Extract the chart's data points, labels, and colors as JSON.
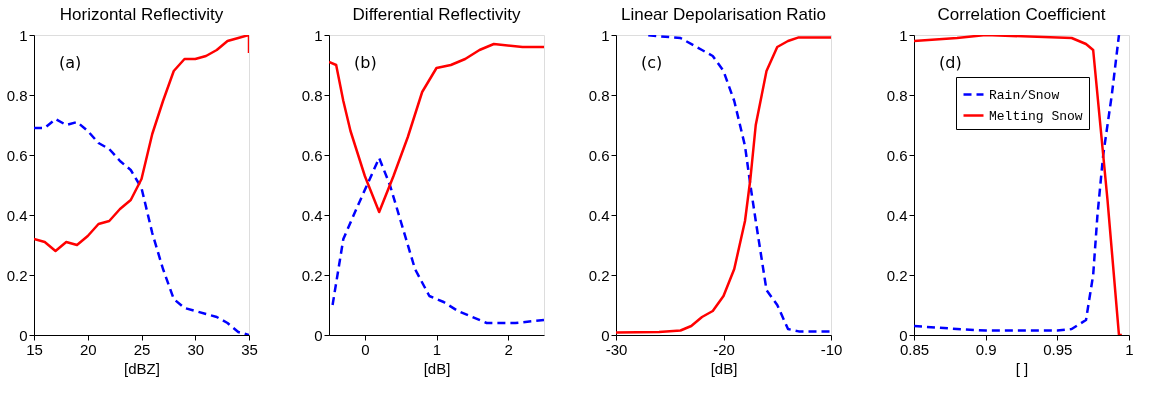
{
  "chart_data": [
    {
      "type": "line",
      "title": "Horizontal Reflectivity",
      "xlabel": "[dBZ]",
      "annotations": [
        "(a)"
      ],
      "xlim": [
        15,
        35
      ],
      "xticks": [
        15,
        20,
        25,
        30,
        35
      ],
      "ylim": [
        0,
        1
      ],
      "yticks": [
        0,
        0.2,
        0.4,
        0.6,
        0.8,
        1
      ],
      "grid": false,
      "legend": false,
      "series": [
        {
          "color": "#0000ff",
          "line_style": "dashed",
          "x": [
            15,
            16,
            17,
            18,
            19,
            20,
            21,
            22,
            23,
            24,
            25,
            26,
            27,
            28,
            29,
            30,
            31,
            32,
            33,
            34,
            35
          ],
          "values": [
            0.69,
            0.69,
            0.72,
            0.7,
            0.71,
            0.68,
            0.64,
            0.62,
            0.58,
            0.55,
            0.49,
            0.34,
            0.22,
            0.12,
            0.09,
            0.08,
            0.07,
            0.06,
            0.04,
            0.01,
            0.0
          ]
        },
        {
          "color": "#ff0000",
          "line_style": "solid",
          "x": [
            15,
            16,
            17,
            18,
            19,
            20,
            21,
            22,
            23,
            24,
            25,
            26,
            27,
            28,
            29,
            30,
            31,
            32,
            33,
            34,
            35,
            35
          ],
          "values": [
            0.32,
            0.31,
            0.28,
            0.31,
            0.3,
            0.33,
            0.37,
            0.38,
            0.42,
            0.45,
            0.52,
            0.67,
            0.78,
            0.88,
            0.92,
            0.92,
            0.93,
            0.95,
            0.98,
            0.99,
            1.0,
            0.94
          ]
        }
      ]
    },
    {
      "type": "line",
      "title": "Differential Reflectivity",
      "xlabel": "[dB]",
      "annotations": [
        "(b)"
      ],
      "xlim": [
        -0.5,
        2.5
      ],
      "xticks": [
        0,
        1,
        2
      ],
      "ylim": [
        0,
        1
      ],
      "yticks": [
        0,
        0.2,
        0.4,
        0.6,
        0.8,
        1
      ],
      "grid": false,
      "legend": false,
      "series": [
        {
          "color": "#0000ff",
          "line_style": "dashed",
          "x": [
            -0.45,
            -0.3,
            -0.1,
            0.05,
            0.2,
            0.35,
            0.5,
            0.7,
            0.9,
            1.1,
            1.3,
            1.5,
            1.7,
            1.9,
            2.1,
            2.5
          ],
          "values": [
            0.1,
            0.32,
            0.43,
            0.51,
            0.59,
            0.5,
            0.38,
            0.22,
            0.13,
            0.11,
            0.08,
            0.06,
            0.04,
            0.04,
            0.04,
            0.05
          ]
        },
        {
          "color": "#ff0000",
          "line_style": "solid",
          "x": [
            -0.5,
            -0.4,
            -0.3,
            -0.2,
            0,
            0.2,
            0.4,
            0.6,
            0.8,
            1.0,
            1.2,
            1.4,
            1.6,
            1.8,
            2.2,
            2.5
          ],
          "values": [
            0.91,
            0.9,
            0.78,
            0.68,
            0.53,
            0.41,
            0.53,
            0.66,
            0.81,
            0.89,
            0.9,
            0.92,
            0.95,
            0.97,
            0.96,
            0.96
          ]
        }
      ]
    },
    {
      "type": "line",
      "title": "Linear Depolarisation Ratio",
      "xlabel": "[dB]",
      "annotations": [
        "(c)"
      ],
      "xlim": [
        -30,
        -10
      ],
      "xticks": [
        -30,
        -20,
        -10
      ],
      "ylim": [
        0,
        1
      ],
      "yticks": [
        0,
        0.2,
        0.4,
        0.6,
        0.8,
        1
      ],
      "grid": false,
      "legend": false,
      "series": [
        {
          "color": "#0000ff",
          "line_style": "dashed",
          "x": [
            -27,
            -24,
            -22,
            -21,
            -20,
            -19,
            -18,
            -17.5,
            -17,
            -16,
            -15,
            -14,
            -13,
            -10
          ],
          "values": [
            0.999,
            0.99,
            0.95,
            0.93,
            0.88,
            0.78,
            0.63,
            0.5,
            0.38,
            0.15,
            0.1,
            0.02,
            0.012,
            0.012
          ]
        },
        {
          "color": "#ff0000",
          "line_style": "solid",
          "x": [
            -30,
            -26,
            -24,
            -23,
            -22,
            -21,
            -20,
            -19,
            -18,
            -17.5,
            -17,
            -16,
            -15,
            -14,
            -13,
            -10
          ],
          "values": [
            0.008,
            0.01,
            0.015,
            0.03,
            0.06,
            0.08,
            0.13,
            0.22,
            0.38,
            0.52,
            0.7,
            0.88,
            0.96,
            0.98,
            0.992,
            0.992
          ]
        }
      ]
    },
    {
      "type": "line",
      "title": "Correlation Coefficient",
      "xlabel": "[ ]",
      "annotations": [
        "(d)"
      ],
      "xlim": [
        0.85,
        1
      ],
      "xticks": [
        0.85,
        0.9,
        0.95,
        1
      ],
      "ylim": [
        0,
        1
      ],
      "yticks": [
        0,
        0.2,
        0.4,
        0.6,
        0.8,
        1
      ],
      "grid": false,
      "legend": "top left",
      "series": [
        {
          "name": "Rain/Snow",
          "color": "#0000ff",
          "line_style": "dashed",
          "x": [
            0.85,
            0.88,
            0.9,
            0.95,
            0.96,
            0.97,
            0.975,
            0.978,
            0.982,
            0.988,
            0.993
          ],
          "values": [
            0.03,
            0.02,
            0.015,
            0.015,
            0.02,
            0.05,
            0.2,
            0.4,
            0.6,
            0.8,
            1.0
          ]
        },
        {
          "name": "Melting Snow",
          "color": "#ff0000",
          "line_style": "solid",
          "x": [
            0.85,
            0.88,
            0.9,
            0.96,
            0.97,
            0.975,
            0.985,
            0.993,
            0.995
          ],
          "values": [
            0.98,
            0.99,
            1.0,
            0.99,
            0.97,
            0.95,
            0.45,
            0.0,
            0.0
          ]
        }
      ]
    }
  ]
}
